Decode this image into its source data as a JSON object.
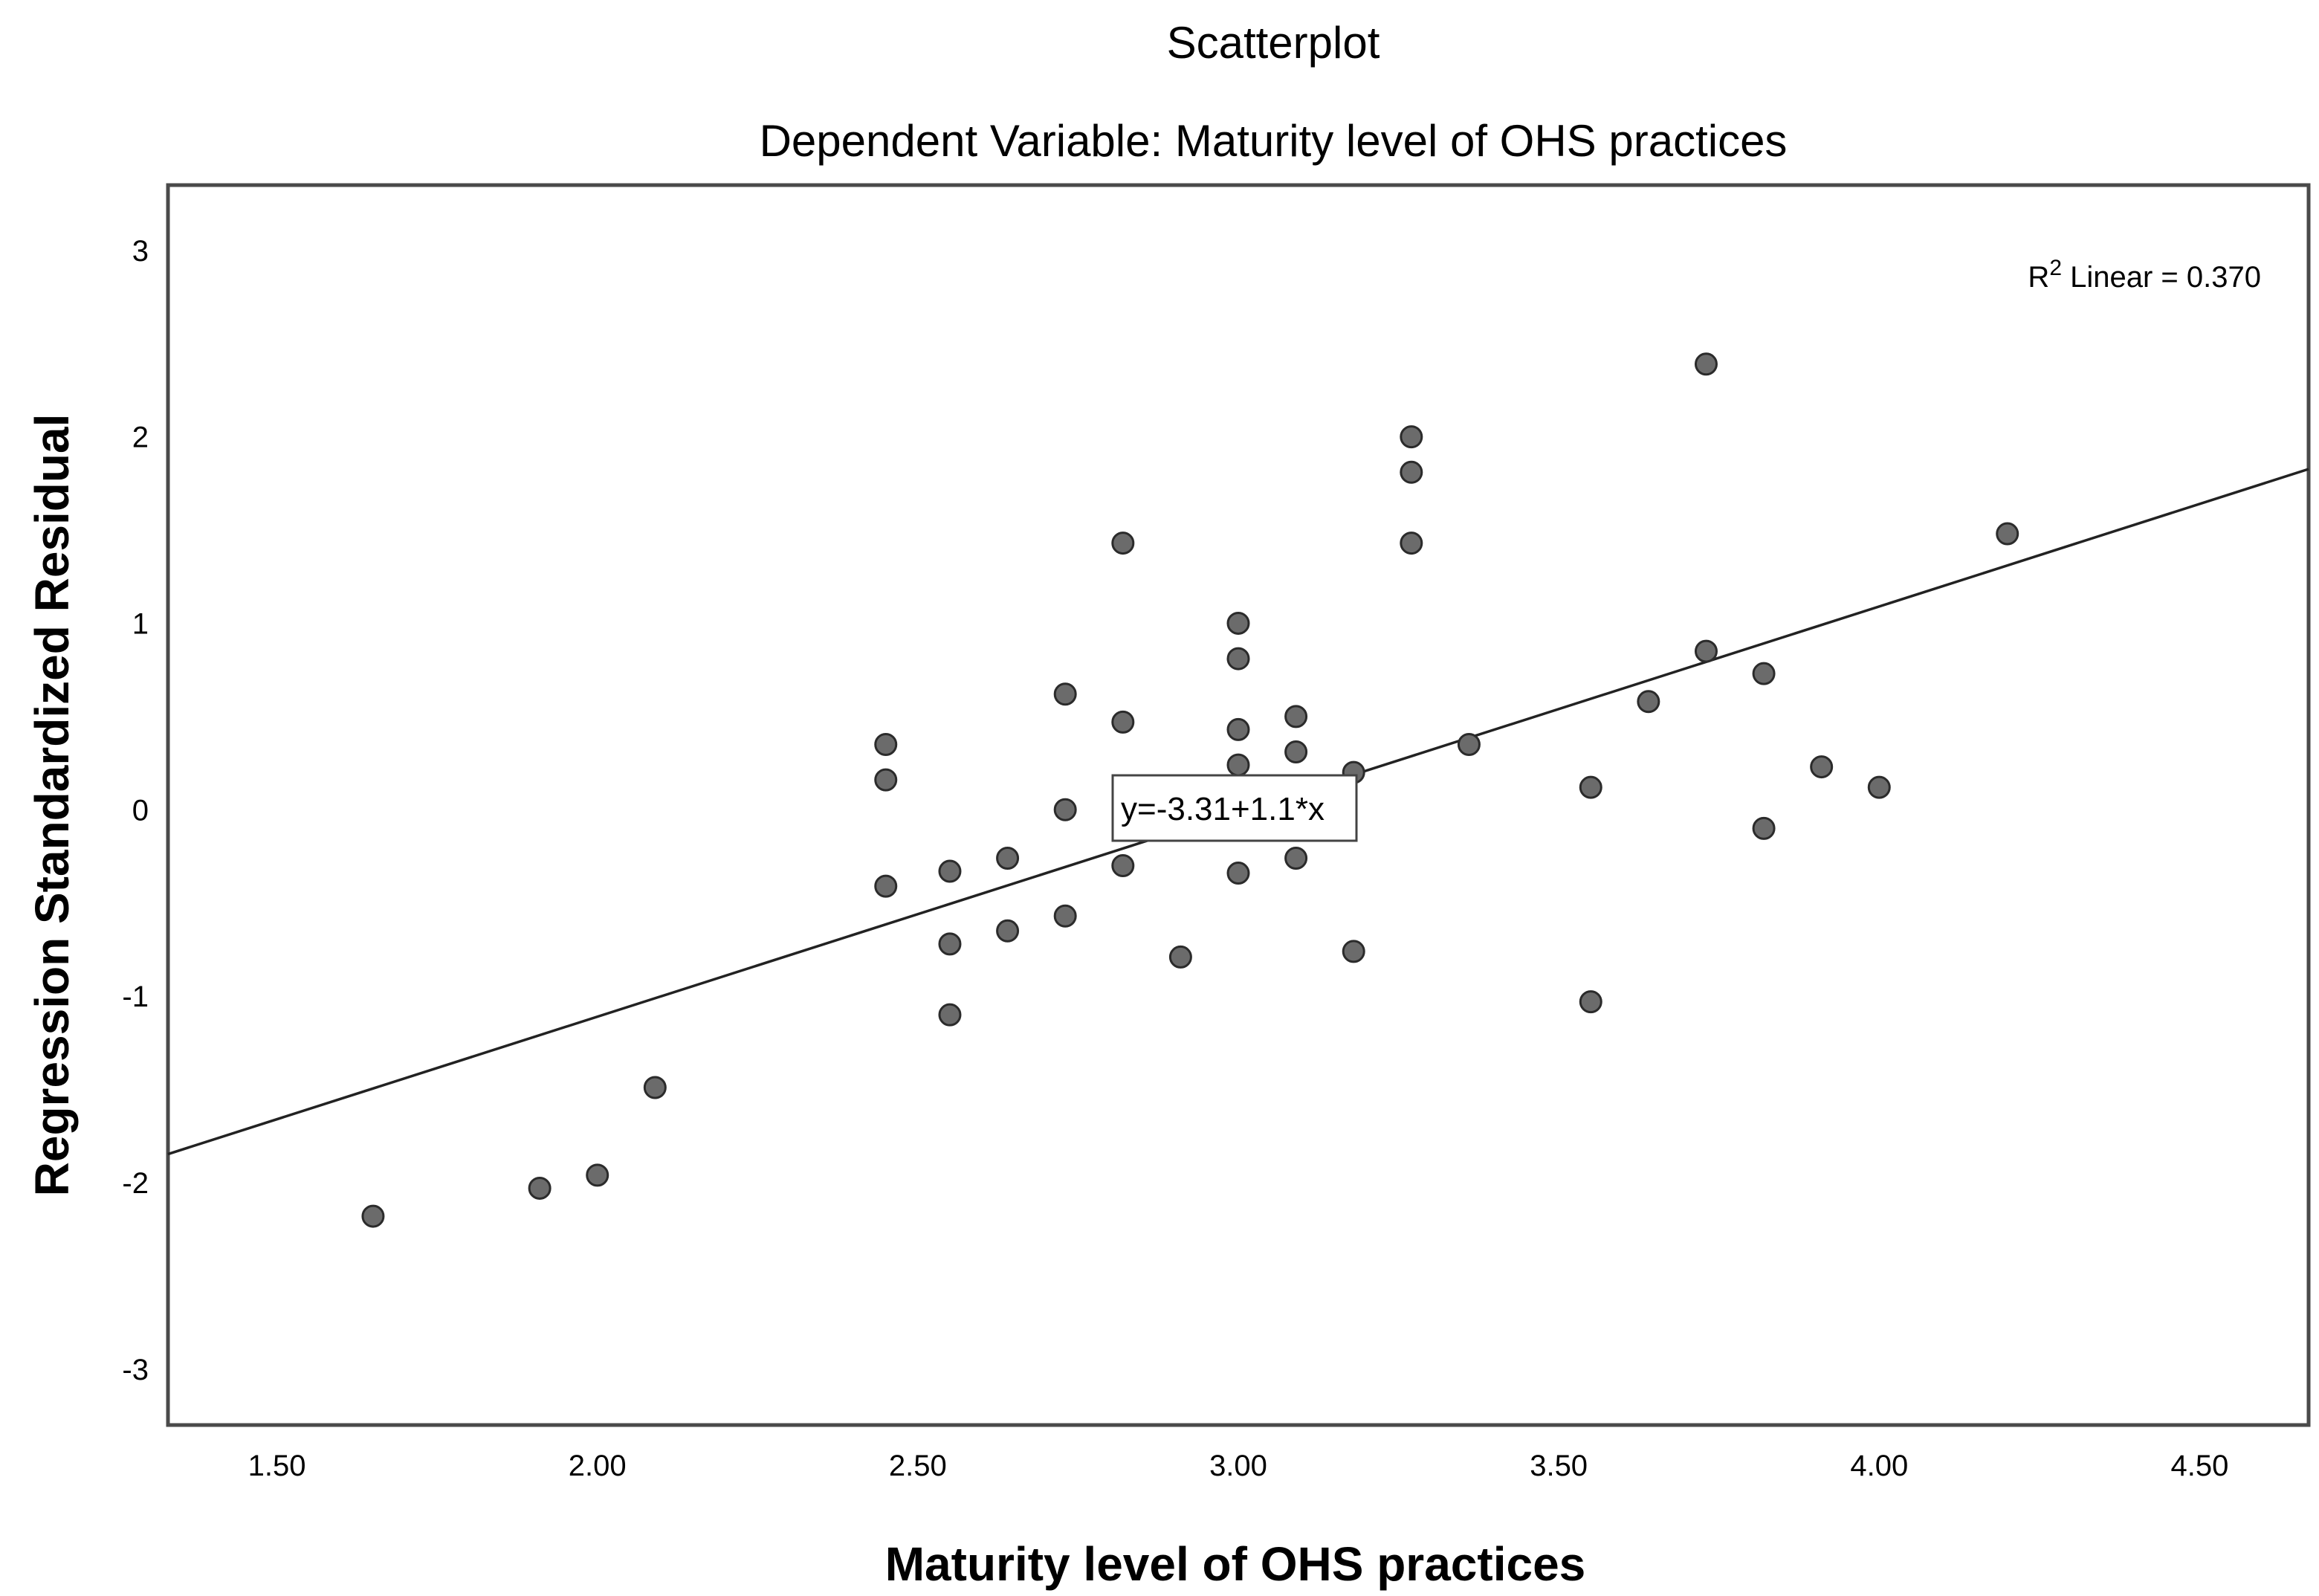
{
  "chart_data": {
    "type": "scatter",
    "title": "Scatterplot",
    "subtitle": "Dependent Variable: Maturity level of OHS practices",
    "xlabel": "Maturity level of OHS practices",
    "ylabel": "Regression Standardized Residual",
    "xlim": [
      1.33,
      4.67
    ],
    "ylim": [
      -3.3,
      3.35
    ],
    "x_ticks": [
      1.5,
      2.0,
      2.5,
      3.0,
      3.5,
      4.0,
      4.5
    ],
    "x_tick_labels": [
      "1.50",
      "2.00",
      "2.50",
      "3.00",
      "3.50",
      "4.00",
      "4.50"
    ],
    "y_ticks": [
      -3,
      -2,
      -1,
      0,
      1,
      2,
      3
    ],
    "y_tick_labels": [
      "-3",
      "-2",
      "-1",
      "0",
      "1",
      "2",
      "3"
    ],
    "grid": false,
    "r2_label": {
      "prefix": "R",
      "sup": "2",
      "text": " Linear = 0.370"
    },
    "fit_line": {
      "intercept": -3.31,
      "slope": 1.1,
      "equation_label": "y=-3.31+1.1*x"
    },
    "points": [
      {
        "x": 1.65,
        "y": -2.18
      },
      {
        "x": 1.91,
        "y": -2.03
      },
      {
        "x": 2.0,
        "y": -1.96
      },
      {
        "x": 2.09,
        "y": -1.49
      },
      {
        "x": 2.45,
        "y": 0.35
      },
      {
        "x": 2.45,
        "y": 0.16
      },
      {
        "x": 2.45,
        "y": -0.41
      },
      {
        "x": 2.55,
        "y": -0.33
      },
      {
        "x": 2.55,
        "y": -0.72
      },
      {
        "x": 2.55,
        "y": -1.1
      },
      {
        "x": 2.64,
        "y": -0.26
      },
      {
        "x": 2.64,
        "y": -0.65
      },
      {
        "x": 2.73,
        "y": 0.62
      },
      {
        "x": 2.73,
        "y": 0.0
      },
      {
        "x": 2.73,
        "y": -0.57
      },
      {
        "x": 2.82,
        "y": 1.43
      },
      {
        "x": 2.82,
        "y": 0.47
      },
      {
        "x": 2.82,
        "y": -0.3
      },
      {
        "x": 2.91,
        "y": -0.79
      },
      {
        "x": 3.0,
        "y": 1.0
      },
      {
        "x": 3.0,
        "y": 0.81
      },
      {
        "x": 3.0,
        "y": 0.43
      },
      {
        "x": 3.0,
        "y": 0.24
      },
      {
        "x": 3.0,
        "y": -0.34
      },
      {
        "x": 3.09,
        "y": 0.5
      },
      {
        "x": 3.09,
        "y": 0.31
      },
      {
        "x": 3.09,
        "y": -0.26
      },
      {
        "x": 3.18,
        "y": 0.2
      },
      {
        "x": 3.18,
        "y": -0.76
      },
      {
        "x": 3.27,
        "y": 2.0
      },
      {
        "x": 3.27,
        "y": 1.81
      },
      {
        "x": 3.27,
        "y": 1.43
      },
      {
        "x": 3.36,
        "y": 0.35
      },
      {
        "x": 3.55,
        "y": 0.12
      },
      {
        "x": 3.55,
        "y": -1.03
      },
      {
        "x": 3.64,
        "y": 0.58
      },
      {
        "x": 3.73,
        "y": 2.39
      },
      {
        "x": 3.73,
        "y": 0.85
      },
      {
        "x": 3.82,
        "y": 0.73
      },
      {
        "x": 3.82,
        "y": -0.1
      },
      {
        "x": 3.91,
        "y": 0.23
      },
      {
        "x": 4.0,
        "y": 0.12
      },
      {
        "x": 4.2,
        "y": 1.48
      }
    ]
  }
}
